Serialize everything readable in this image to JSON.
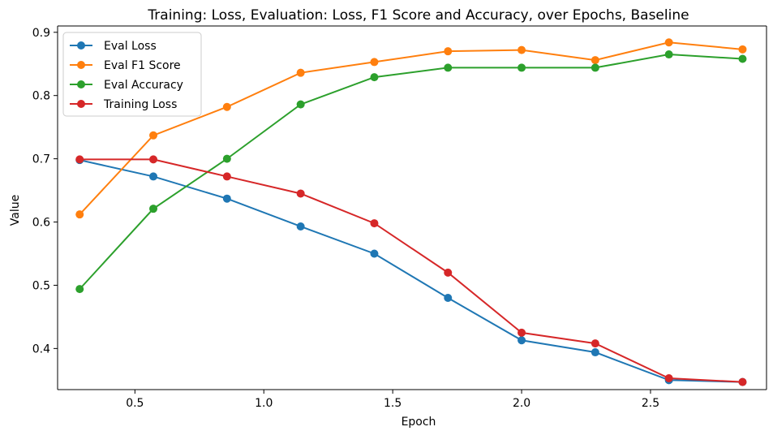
{
  "chart_data": {
    "type": "line",
    "title": "Training: Loss, Evaluation: Loss, F1 Score and Accuracy, over Epochs, Baseline",
    "xlabel": "Epoch",
    "ylabel": "Value",
    "xlim": [
      0.2,
      2.95
    ],
    "ylim": [
      0.335,
      0.91
    ],
    "grid": false,
    "legend_position": "top-left",
    "x": [
      0.2857,
      0.5714,
      0.8571,
      1.1429,
      1.4286,
      1.7143,
      2.0,
      2.2857,
      2.5714,
      2.8571
    ],
    "x_ticks": [
      0.5,
      1.0,
      1.5,
      2.0,
      2.5
    ],
    "x_tick_labels": [
      "0.5",
      "1.0",
      "1.5",
      "2.0",
      "2.5"
    ],
    "y_ticks": [
      0.4,
      0.5,
      0.6,
      0.7,
      0.8,
      0.9
    ],
    "y_tick_labels": [
      "0.4",
      "0.5",
      "0.6",
      "0.7",
      "0.8",
      "0.9"
    ],
    "series": [
      {
        "name": "Eval Loss",
        "color": "#1f77b4",
        "values": [
          0.698,
          0.672,
          0.637,
          0.593,
          0.55,
          0.48,
          0.413,
          0.394,
          0.35,
          0.347
        ]
      },
      {
        "name": "Eval F1 Score",
        "color": "#ff7f0e",
        "values": [
          0.612,
          0.737,
          0.782,
          0.836,
          0.853,
          0.87,
          0.872,
          0.856,
          0.884,
          0.873
        ]
      },
      {
        "name": "Eval Accuracy",
        "color": "#2ca02c",
        "values": [
          0.494,
          0.621,
          0.7,
          0.786,
          0.829,
          0.844,
          0.844,
          0.844,
          0.865,
          0.858
        ]
      },
      {
        "name": "Training Loss",
        "color": "#d62728",
        "values": [
          0.699,
          0.699,
          0.672,
          0.645,
          0.598,
          0.52,
          0.425,
          0.408,
          0.353,
          0.347
        ]
      }
    ]
  }
}
